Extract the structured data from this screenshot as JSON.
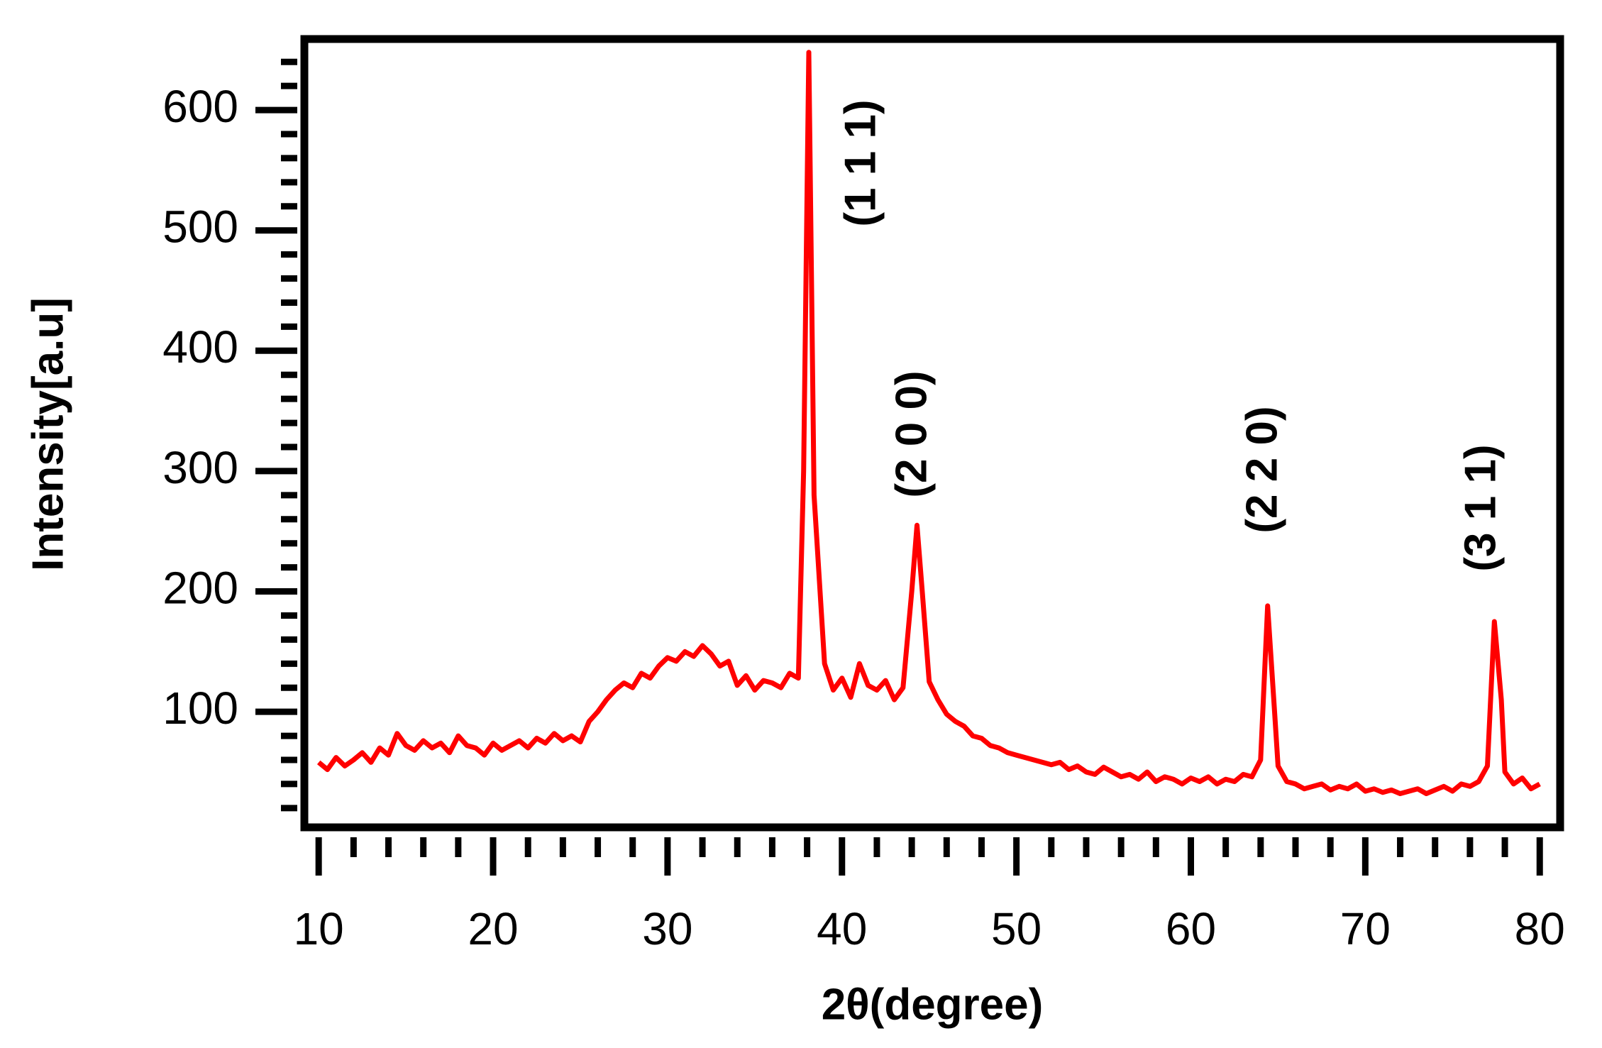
{
  "chart_data": {
    "type": "line",
    "x_label": "2θ(degree)",
    "y_label": "Intensity[a.u]",
    "x": [
      10,
      10.5,
      11,
      11.5,
      12,
      12.5,
      13,
      13.5,
      14,
      14.5,
      15,
      15.5,
      16,
      16.5,
      17,
      17.5,
      18,
      18.5,
      19,
      19.5,
      20,
      20.5,
      21,
      21.5,
      22,
      22.5,
      23,
      23.5,
      24,
      24.5,
      25,
      25.5,
      26,
      26.5,
      27,
      27.5,
      28,
      28.5,
      29,
      29.5,
      30,
      30.5,
      31,
      31.5,
      32,
      32.5,
      33,
      33.5,
      34,
      34.5,
      35,
      35.5,
      36,
      36.5,
      37,
      37.5,
      37.8,
      38.1,
      38.4,
      39,
      39.5,
      40,
      40.5,
      41,
      41.5,
      42,
      42.5,
      43,
      43.5,
      44,
      44.3,
      44.6,
      45,
      45.5,
      46,
      46.5,
      47,
      47.5,
      48,
      48.5,
      49,
      49.5,
      50,
      50.5,
      51,
      51.5,
      52,
      52.5,
      53,
      53.5,
      54,
      54.5,
      55,
      55.5,
      56,
      56.5,
      57,
      57.5,
      58,
      58.5,
      59,
      59.5,
      60,
      60.5,
      61,
      61.5,
      62,
      62.5,
      63,
      63.5,
      64,
      64.4,
      64.8,
      65,
      65.5,
      66,
      66.5,
      67,
      67.5,
      68,
      68.5,
      69,
      69.5,
      70,
      70.5,
      71,
      71.5,
      72,
      72.5,
      73,
      73.5,
      74,
      74.5,
      75,
      75.5,
      76,
      76.5,
      77,
      77.4,
      77.8,
      78,
      78.5,
      79,
      79.5,
      80
    ],
    "series": [
      {
        "color": "#ff0000",
        "values": [
          58,
          52,
          62,
          55,
          60,
          66,
          58,
          70,
          64,
          82,
          72,
          68,
          76,
          70,
          74,
          66,
          80,
          72,
          70,
          64,
          74,
          68,
          72,
          76,
          70,
          78,
          74,
          82,
          76,
          80,
          75,
          92,
          100,
          110,
          118,
          124,
          120,
          132,
          128,
          138,
          145,
          142,
          150,
          146,
          155,
          148,
          138,
          142,
          122,
          130,
          118,
          126,
          124,
          120,
          132,
          128,
          300,
          648,
          280,
          140,
          118,
          128,
          112,
          140,
          122,
          118,
          126,
          110,
          120,
          200,
          255,
          200,
          125,
          110,
          98,
          92,
          88,
          80,
          78,
          72,
          70,
          66,
          64,
          62,
          60,
          58,
          56,
          58,
          52,
          55,
          50,
          48,
          54,
          50,
          46,
          48,
          44,
          50,
          42,
          46,
          44,
          40,
          45,
          42,
          46,
          40,
          44,
          42,
          48,
          46,
          60,
          188,
          100,
          55,
          42,
          40,
          36,
          38,
          40,
          35,
          38,
          36,
          40,
          34,
          36,
          33,
          35,
          32,
          34,
          36,
          32,
          35,
          38,
          34,
          40,
          38,
          42,
          55,
          175,
          110,
          50,
          40,
          45,
          36,
          40
        ]
      }
    ],
    "annotations": [
      "(1 1 1)",
      "(2 0 0)",
      "(2 2 0)",
      "(3 1 1)"
    ],
    "xlim": [
      9.18,
      81.17
    ],
    "ylim": [
      4,
      659
    ],
    "xticks": [
      10,
      20,
      30,
      40,
      50,
      60,
      70,
      80
    ],
    "yticks": [
      100,
      200,
      300,
      400,
      500,
      600
    ],
    "xminorticks": [
      12,
      14,
      16,
      18,
      22,
      24,
      26,
      28,
      32,
      34,
      36,
      38,
      42,
      44,
      46,
      48,
      52,
      54,
      56,
      58,
      62,
      64,
      66,
      68,
      72,
      74,
      76,
      78
    ],
    "yminorticks": [
      20,
      40,
      60,
      80,
      120,
      140,
      160,
      180,
      220,
      240,
      260,
      280,
      320,
      340,
      360,
      380,
      420,
      440,
      460,
      480,
      520,
      540,
      560,
      580,
      620,
      640
    ],
    "grid": false
  }
}
